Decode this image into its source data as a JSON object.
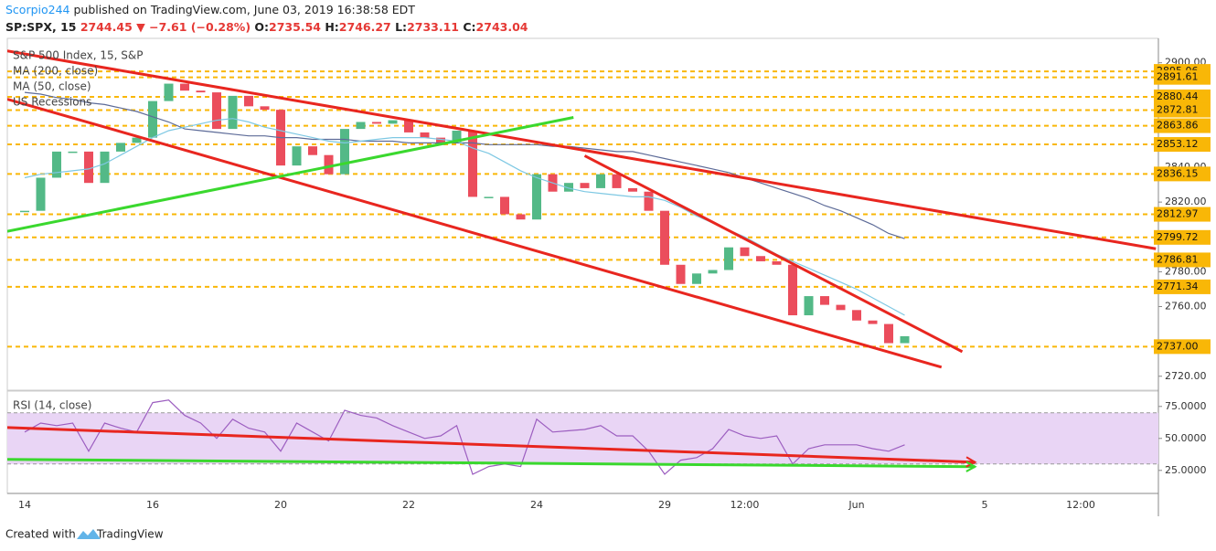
{
  "header": {
    "author": "Scorpio244",
    "published": "published on TradingView.com, June 03, 2019 16:38:58 EDT",
    "symbol": "SP:SPX, 15",
    "last": 2744.45,
    "arrow": "▼",
    "change": "−7.61 (−0.28%)",
    "open_label": "O:",
    "open": 2735.54,
    "high_label": "H:",
    "high": 2746.27,
    "low_label": "L:",
    "low": 2733.11,
    "close_label": "C:",
    "close": 2743.04
  },
  "footer": {
    "created": "Created with",
    "brand": "TradingView"
  },
  "chart_data": [
    {
      "type": "candlestick",
      "categories": [
        "14",
        null,
        null,
        null,
        null,
        null,
        null,
        null,
        "16",
        null,
        null,
        null,
        null,
        null,
        null,
        null,
        "20",
        null,
        null,
        null,
        null,
        null,
        null,
        null,
        "22",
        null,
        null,
        null,
        null,
        null,
        null,
        null,
        "24",
        null,
        null,
        null,
        null,
        null,
        null,
        null,
        "29",
        null,
        null,
        null,
        null,
        "12:00",
        null,
        null,
        null,
        null,
        null,
        null,
        "Jun",
        null,
        null,
        null,
        null,
        null,
        null,
        null,
        "5",
        null,
        null,
        null,
        null,
        null,
        "12:00",
        null,
        null,
        null,
        null
      ],
      "series": [
        {
          "name": "S&P 500 Index, 15, S&P",
          "style": "candles",
          "color": "#53b987",
          "down_color": "#eb4d5c",
          "values": [
            2815,
            2834,
            2849,
            2849,
            2831,
            2849,
            2854,
            2857,
            2878,
            2888,
            2884,
            2883,
            2862,
            2881,
            2875,
            2873,
            2841,
            2852,
            2847,
            2836,
            2862,
            2866,
            2865,
            2867,
            2860,
            2857,
            2854,
            2861,
            2823,
            2823,
            2813,
            2810,
            2836,
            2826,
            2831,
            2828,
            2836,
            2828,
            2826,
            2815,
            2784,
            2773,
            2779,
            2781,
            2794,
            2789,
            2786,
            2784,
            2755,
            2766,
            2761,
            2758,
            2752,
            2750,
            2739,
            2743,
            null,
            null,
            null,
            null,
            null,
            null,
            null,
            null,
            null,
            null,
            null,
            null,
            null,
            null,
            null
          ]
        },
        {
          "name": "MA (200, close)",
          "style": "line",
          "color": "#5d6b98",
          "values": [
            2883,
            2882,
            2880,
            2879,
            2877,
            2876,
            2874,
            2872,
            2869,
            2866,
            2862,
            2861,
            2860,
            2859,
            2858,
            2858,
            2857,
            2857,
            2856,
            2856,
            2856,
            2855,
            2855,
            2855,
            2854,
            2854,
            2854,
            2854,
            2854,
            2853,
            2853,
            2853,
            2853,
            2852,
            2852,
            2851,
            2850,
            2849,
            2849,
            2847,
            2845,
            2843,
            2841,
            2839,
            2837,
            2834,
            2831,
            2828,
            2825,
            2822,
            2818,
            2815,
            2811,
            2807,
            2802,
            2799,
            null,
            null,
            null,
            null,
            null,
            null,
            null,
            null,
            null,
            null,
            null,
            null,
            null,
            null,
            null
          ]
        },
        {
          "name": "MA (50, close)",
          "style": "line",
          "color": "#7ec8e3",
          "values": [
            2834,
            2836,
            2837,
            2838,
            2839,
            2842,
            2847,
            2852,
            2857,
            2861,
            2863,
            2865,
            2867,
            2868,
            2866,
            2863,
            2861,
            2859,
            2857,
            2855,
            2854,
            2855,
            2856,
            2857,
            2857,
            2857,
            2856,
            2855,
            2851,
            2848,
            2843,
            2838,
            2834,
            2831,
            2828,
            2826,
            2825,
            2824,
            2823,
            2823,
            2821,
            2817,
            2812,
            2808,
            2804,
            2800,
            2795,
            2790,
            2786,
            2782,
            2778,
            2774,
            2770,
            2765,
            2760,
            2755,
            null,
            null,
            null,
            null,
            null,
            null,
            null,
            null,
            null,
            null,
            null,
            null,
            null,
            null,
            null
          ]
        }
      ],
      "overlays": [
        "US Recessions"
      ],
      "ylim": [
        2712,
        2914
      ],
      "yticks": [
        {
          "value": 2900,
          "label": "2900.00"
        },
        {
          "value": 2840,
          "label": "2840.00"
        },
        {
          "value": 2820,
          "label": "2820.00"
        },
        {
          "value": 2780,
          "label": "2780.00"
        },
        {
          "value": 2760,
          "label": "2760.00"
        },
        {
          "value": 2720,
          "label": "2720.00"
        }
      ],
      "levels": [
        2895.06,
        2891.61,
        2880.44,
        2872.81,
        2863.86,
        2853.12,
        2836.15,
        2812.97,
        2799.72,
        2786.81,
        2771.34,
        {
          "value": 2737,
          "label": "2737.00"
        }
      ],
      "level_color": "#f9b707",
      "trendlines": [
        {
          "color": "#e8261f",
          "points": [
            [
              -1.09,
              2906.8
            ],
            [
              70.7,
              2793.2
            ]
          ]
        },
        {
          "color": "#e8261f",
          "points": [
            [
              -1.09,
              2879.1
            ],
            [
              57.3,
              2725.2
            ]
          ]
        },
        {
          "color": "#e8261f",
          "points": [
            [
              35.0,
              2846.6
            ],
            [
              58.6,
              2734.1
            ]
          ]
        },
        {
          "color": "#3ad82e",
          "points": [
            [
              -1.09,
              2803.2
            ],
            [
              34.3,
              2868.6
            ]
          ]
        }
      ]
    },
    {
      "type": "line",
      "series": [
        {
          "name": "RSI (14, close)",
          "style": "line",
          "color": "#9c5ec0",
          "values": [
            55,
            62,
            60,
            62,
            40,
            62,
            58,
            55,
            78,
            80,
            68,
            62,
            50,
            65,
            58,
            55,
            40,
            62,
            55,
            48,
            72,
            68,
            66,
            60,
            55,
            50,
            52,
            60,
            22,
            28,
            30,
            28,
            65,
            55,
            56,
            57,
            60,
            52,
            52,
            40,
            22,
            33,
            35,
            42,
            57,
            52,
            50,
            52,
            30,
            42,
            45,
            45,
            45,
            42,
            40,
            45,
            null,
            null,
            null,
            null,
            null,
            null,
            null,
            null,
            null,
            null,
            null,
            null,
            null,
            null,
            null
          ]
        }
      ],
      "ylim": [
        7,
        87
      ],
      "yticks": [
        {
          "value": 75,
          "label": "75.0000"
        },
        {
          "value": 50,
          "label": "50.0000"
        },
        {
          "value": 25,
          "label": "25.0000"
        }
      ],
      "band": [
        30,
        70
      ],
      "band_color": "#e9d5f5",
      "trendlines": [
        {
          "color": "#e8261f",
          "arrow": true,
          "points": [
            [
              -1.09,
              58.5
            ],
            [
              59.4,
              31.4
            ]
          ]
        },
        {
          "color": "#3ad82e",
          "arrow": true,
          "points": [
            [
              -1.09,
              33.6
            ],
            [
              59.4,
              27.9
            ]
          ]
        }
      ]
    }
  ]
}
